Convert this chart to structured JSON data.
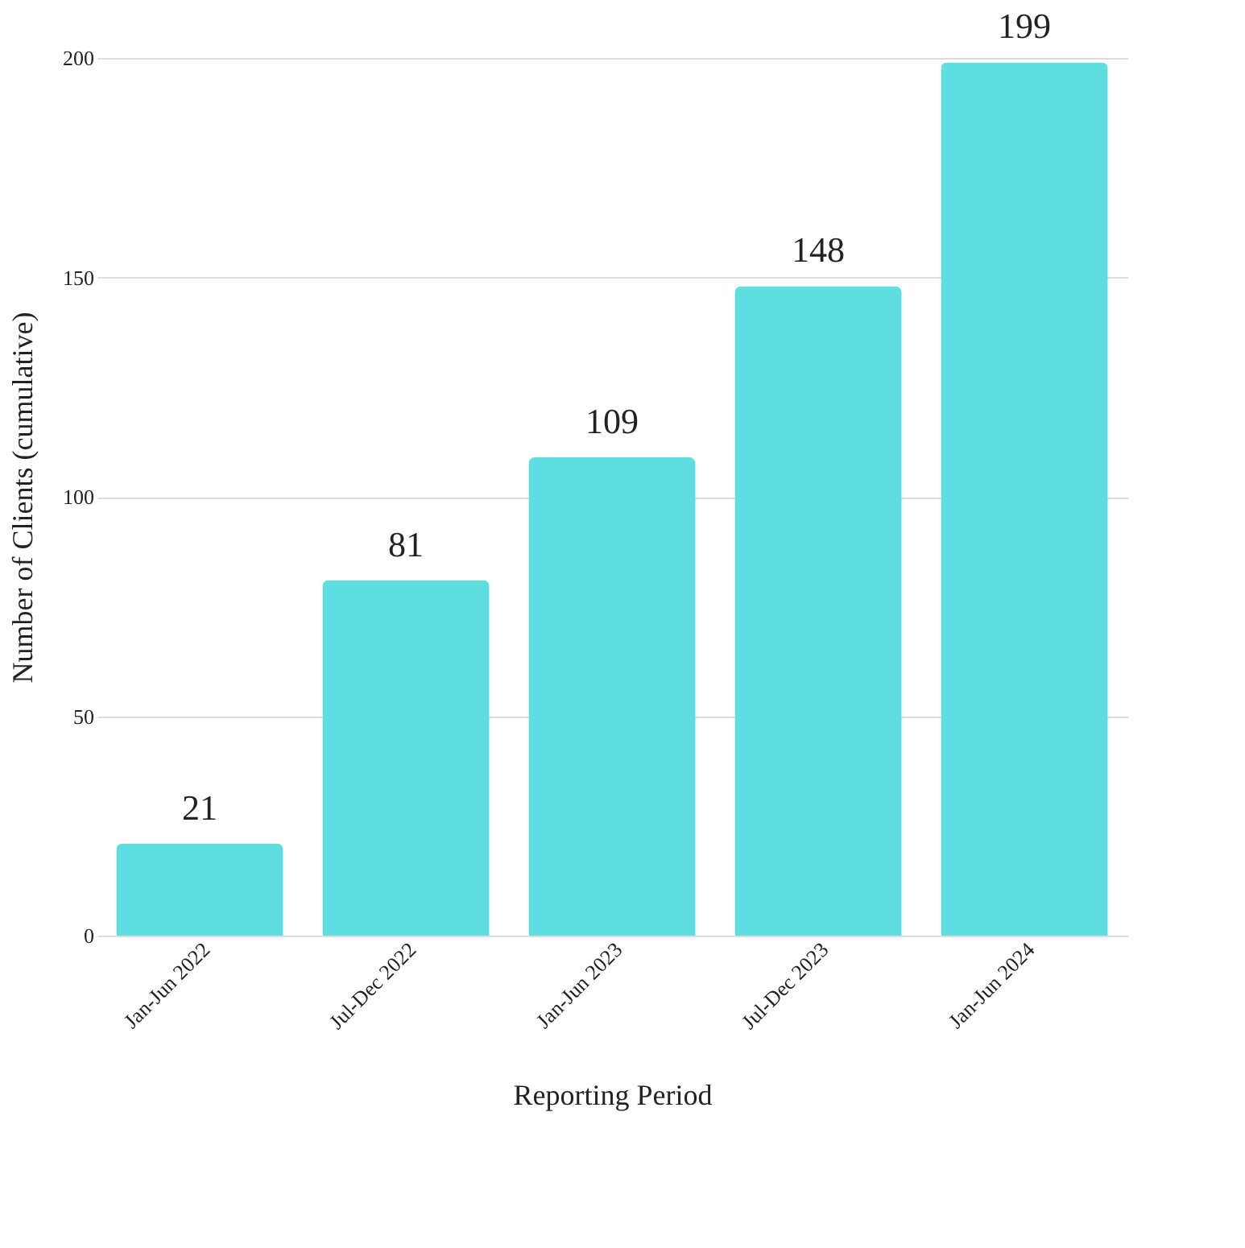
{
  "chart_data": {
    "type": "bar",
    "xlabel": "Reporting Period",
    "ylabel": "Number of Clients (cumulative)",
    "categories": [
      "Jan-Jun 2022",
      "Jul-Dec 2022",
      "Jan-Jun 2023",
      "Jul-Dec 2023",
      "Jan-Jun 2024"
    ],
    "values": [
      21,
      81,
      109,
      148,
      199
    ],
    "color": "#5ddfe0",
    "ylim": [
      0,
      200
    ],
    "yticks": [
      0,
      50,
      100,
      150,
      200
    ],
    "grid": "y",
    "data_labels": true
  }
}
